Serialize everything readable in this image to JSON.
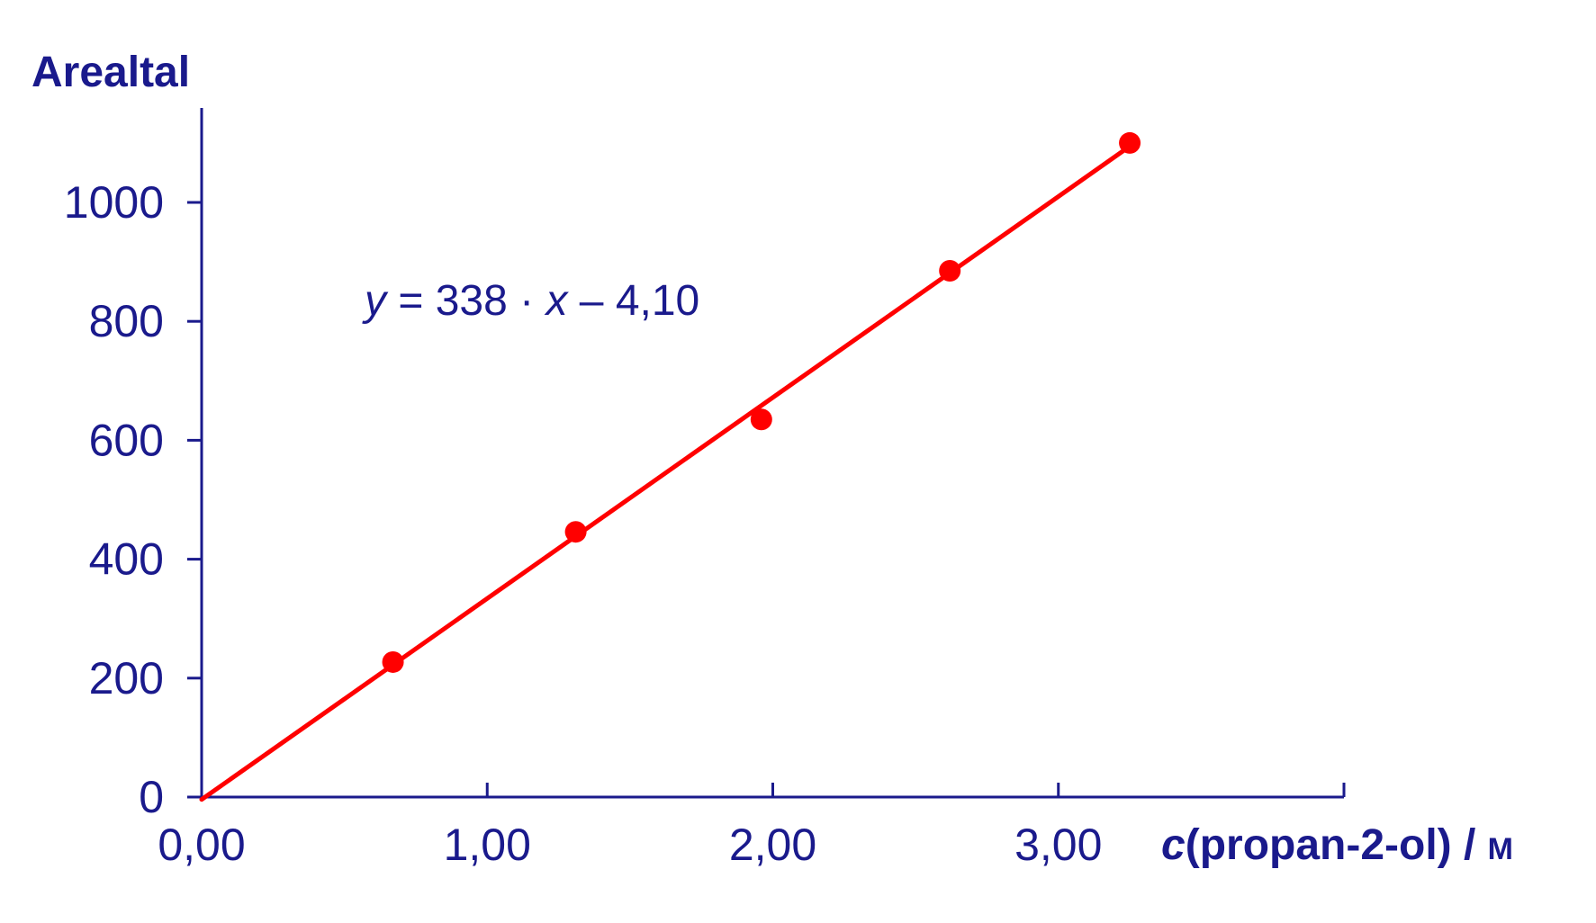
{
  "chart_data": {
    "type": "scatter",
    "ylabel": "Arealtal",
    "xlabel": {
      "var": "c",
      "rest": "(propan-2-ol) / ",
      "unit": "M"
    },
    "xlim": [
      0,
      4
    ],
    "ylim": [
      0,
      1000
    ],
    "xticks": [
      {
        "value": 0,
        "label": "0,00"
      },
      {
        "value": 1,
        "label": "1,00"
      },
      {
        "value": 2,
        "label": "2,00"
      },
      {
        "value": 3,
        "label": "3,00"
      }
    ],
    "yticks": [
      {
        "value": 0,
        "label": "0"
      },
      {
        "value": 200,
        "label": "200"
      },
      {
        "value": 400,
        "label": "400"
      },
      {
        "value": 600,
        "label": "600"
      },
      {
        "value": 800,
        "label": "800"
      },
      {
        "value": 1000,
        "label": "1000"
      }
    ],
    "points": [
      {
        "x": 0.67,
        "y": 227
      },
      {
        "x": 1.31,
        "y": 446
      },
      {
        "x": 1.96,
        "y": 635
      },
      {
        "x": 2.62,
        "y": 885
      },
      {
        "x": 3.25,
        "y": 1100
      }
    ],
    "fit": {
      "slope": 338,
      "intercept": -4.1,
      "x_range": [
        0,
        3.25
      ],
      "equation": {
        "y": "y",
        "eq": " = 338 · ",
        "x": "x",
        "rest": " – 4,10"
      }
    },
    "colors": {
      "axis": "#1a1a8c",
      "data": "#ff0000",
      "text": "#1a1a8c"
    },
    "grid": false
  }
}
